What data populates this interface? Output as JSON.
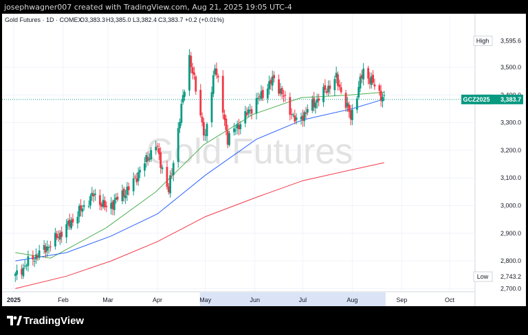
{
  "top_text": "josephwagner007 created with TradingView.com, Aug 21, 2025 19:05 UTC-4",
  "brand": "TradingView",
  "chart_data": {
    "type": "candlestick",
    "header": "Gold Futures · 1D · COMEX",
    "ohlc": {
      "o": "O3,383.3",
      "h": "H3,385.0",
      "l": "L3,382.4",
      "c": "C3,383.7",
      "chg": "+0.2 (+0.01%)"
    },
    "watermark": "Gold Futures",
    "ylim": [
      2690,
      3650
    ],
    "y_ticks": [
      "3,500.0",
      "3,400.0",
      "3,300.0",
      "3,200.0",
      "3,100.0",
      "3,000.0",
      "2,900.0",
      "2,800.0",
      "2,700.0"
    ],
    "y_tick_values": [
      3500,
      3400,
      3300,
      3200,
      3100,
      3000,
      2900,
      2800,
      2700
    ],
    "x_ticks": [
      "2025",
      "Feb",
      "Mar",
      "Apr",
      "May",
      "Jun",
      "Jul",
      "Aug",
      "Sep",
      "Oct"
    ],
    "price_labels": [
      {
        "label": "High",
        "value": "3,595.6",
        "y": 3595.6,
        "color": "#ffffff",
        "text": "#131722"
      },
      {
        "label": "GCZ2025",
        "value": "3,383.7",
        "y": 3383.7,
        "color": "#089981",
        "text": "#ffffff"
      },
      {
        "label": "Low",
        "value": "2,743.2",
        "y": 2743.2,
        "color": "#ffffff",
        "text": "#131722"
      }
    ],
    "highlight_range": [
      "May",
      "Aug 21"
    ],
    "colors": {
      "up": "#089981",
      "down": "#f23645",
      "ma_green": "#4caf50",
      "ma_blue": "#2962ff",
      "ma_red": "#f23645",
      "highlight": "#dbe4f7"
    },
    "key_closes": [
      {
        "date": "2025-01-02",
        "close": 2745
      },
      {
        "date": "2025-01-10",
        "close": 2795
      },
      {
        "date": "2025-01-24",
        "close": 2860
      },
      {
        "date": "2025-02-05",
        "close": 2935
      },
      {
        "date": "2025-02-20",
        "close": 3040
      },
      {
        "date": "2025-02-28",
        "close": 2990
      },
      {
        "date": "2025-03-14",
        "close": 3060
      },
      {
        "date": "2025-03-31",
        "close": 3220
      },
      {
        "date": "2025-04-08",
        "close": 3050
      },
      {
        "date": "2025-04-21",
        "close": 3540
      },
      {
        "date": "2025-05-01",
        "close": 3240
      },
      {
        "date": "2025-05-07",
        "close": 3510
      },
      {
        "date": "2025-05-15",
        "close": 3240
      },
      {
        "date": "2025-06-05",
        "close": 3400
      },
      {
        "date": "2025-06-13",
        "close": 3460
      },
      {
        "date": "2025-06-27",
        "close": 3300
      },
      {
        "date": "2025-07-22",
        "close": 3460
      },
      {
        "date": "2025-07-31",
        "close": 3320
      },
      {
        "date": "2025-08-08",
        "close": 3490
      },
      {
        "date": "2025-08-21",
        "close": 3383.7
      }
    ],
    "moving_averages": [
      {
        "color": "green",
        "points": [
          [
            "2025-01-02",
            2830
          ],
          [
            "2025-01-24",
            2810
          ],
          [
            "2025-02-28",
            2920
          ],
          [
            "2025-03-31",
            3050
          ],
          [
            "2025-04-30",
            3220
          ],
          [
            "2025-05-31",
            3330
          ],
          [
            "2025-06-30",
            3390
          ],
          [
            "2025-07-31",
            3400
          ],
          [
            "2025-08-21",
            3410
          ]
        ]
      },
      {
        "color": "blue",
        "points": [
          [
            "2025-01-02",
            2800
          ],
          [
            "2025-02-03",
            2830
          ],
          [
            "2025-03-03",
            2890
          ],
          [
            "2025-04-01",
            2970
          ],
          [
            "2025-05-01",
            3110
          ],
          [
            "2025-06-02",
            3240
          ],
          [
            "2025-07-01",
            3310
          ],
          [
            "2025-08-01",
            3350
          ],
          [
            "2025-08-21",
            3385
          ]
        ]
      },
      {
        "color": "red",
        "points": [
          [
            "2025-01-02",
            2700
          ],
          [
            "2025-02-03",
            2745
          ],
          [
            "2025-03-03",
            2800
          ],
          [
            "2025-04-01",
            2870
          ],
          [
            "2025-05-01",
            2960
          ],
          [
            "2025-06-02",
            3030
          ],
          [
            "2025-07-01",
            3090
          ],
          [
            "2025-08-01",
            3130
          ],
          [
            "2025-08-21",
            3155
          ]
        ]
      }
    ]
  }
}
